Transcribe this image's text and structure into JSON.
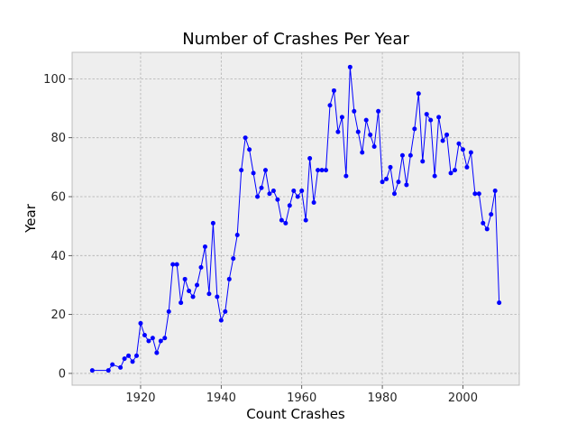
{
  "chart_data": {
    "type": "line",
    "title": "Number of Crashes Per Year",
    "xlabel": "Count Crashes",
    "ylabel": "Year",
    "xlim": [
      1903,
      2014
    ],
    "ylim": [
      -4,
      109
    ],
    "xticks": [
      1920,
      1940,
      1960,
      1980,
      2000
    ],
    "yticks": [
      0,
      20,
      40,
      60,
      80,
      100
    ],
    "grid": true,
    "line_color": "#0000ff",
    "background_color": "#eeeeee",
    "grid_color": "#b0b0b0",
    "series": [
      {
        "x": [
          1908,
          1912,
          1913,
          1915,
          1916,
          1917,
          1918,
          1919,
          1920,
          1921,
          1922,
          1923,
          1924,
          1925,
          1926,
          1927,
          1928,
          1929,
          1930,
          1931,
          1932,
          1933,
          1934,
          1935,
          1936,
          1937,
          1938,
          1939,
          1940,
          1941,
          1942,
          1943,
          1944,
          1945,
          1946,
          1947,
          1948,
          1949,
          1950,
          1951,
          1952,
          1953,
          1954,
          1955,
          1956,
          1957,
          1958,
          1959,
          1960,
          1961,
          1962,
          1963,
          1964,
          1965,
          1966,
          1967,
          1968,
          1969,
          1970,
          1971,
          1972,
          1973,
          1974,
          1975,
          1976,
          1977,
          1978,
          1979,
          1980,
          1981,
          1982,
          1983,
          1984,
          1985,
          1986,
          1987,
          1988,
          1989,
          1990,
          1991,
          1992,
          1993,
          1994,
          1995,
          1996,
          1997,
          1998,
          1999,
          2000,
          2001,
          2002,
          2003,
          2004,
          2005,
          2006,
          2007,
          2008,
          2009
        ],
        "y": [
          1,
          1,
          3,
          2,
          5,
          6,
          4,
          6,
          17,
          13,
          11,
          12,
          7,
          11,
          12,
          21,
          37,
          37,
          24,
          32,
          28,
          26,
          30,
          36,
          43,
          27,
          51,
          26,
          18,
          21,
          32,
          39,
          47,
          69,
          80,
          76,
          68,
          60,
          63,
          69,
          61,
          62,
          59,
          52,
          51,
          57,
          62,
          60,
          62,
          52,
          73,
          58,
          69,
          69,
          69,
          91,
          96,
          82,
          87,
          67,
          104,
          89,
          82,
          75,
          86,
          81,
          77,
          89,
          65,
          66,
          70,
          61,
          65,
          74,
          64,
          74,
          83,
          95,
          72,
          88,
          86,
          67,
          87,
          79,
          81,
          68,
          69,
          78,
          76,
          70,
          75,
          61,
          61,
          51,
          49,
          54,
          62,
          24
        ]
      }
    ]
  }
}
